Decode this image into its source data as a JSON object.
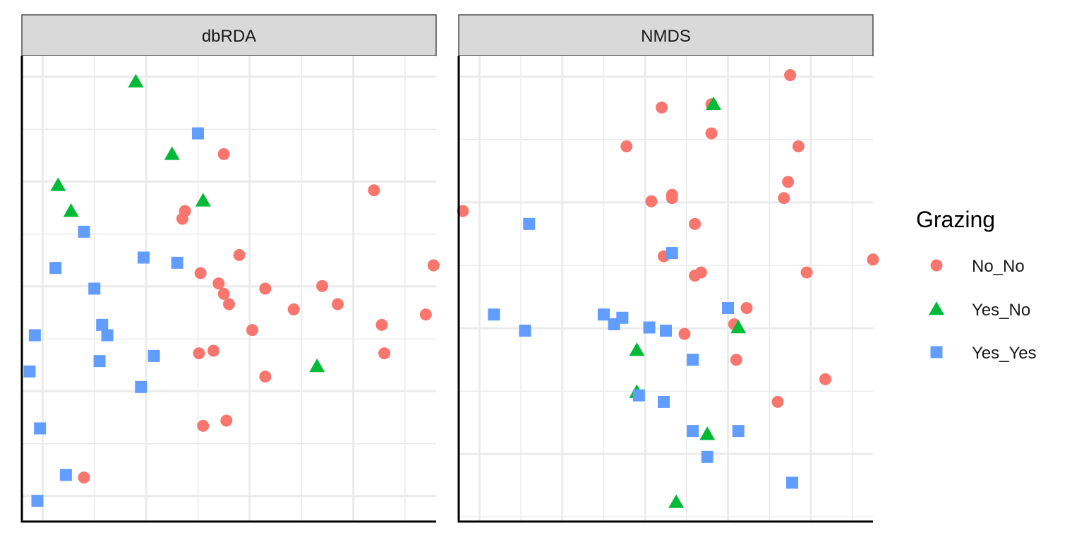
{
  "chart_data": {
    "type": "scatter",
    "facets": [
      {
        "title": "dbRDA",
        "xlim": [
          -0.2,
          7.8
        ],
        "ylim": [
          -0.5,
          8.5
        ],
        "points": [
          {
            "group": "Yes_No",
            "x": 2.0,
            "y": 8.0
          },
          {
            "group": "Yes_No",
            "x": 2.7,
            "y": 6.6
          },
          {
            "group": "Yes_No",
            "x": 0.5,
            "y": 6.0
          },
          {
            "group": "Yes_No",
            "x": 0.75,
            "y": 5.5
          },
          {
            "group": "Yes_No",
            "x": 3.3,
            "y": 5.7
          },
          {
            "group": "Yes_No",
            "x": 5.5,
            "y": 2.5
          },
          {
            "group": "Yes_Yes",
            "x": 3.2,
            "y": 7.0
          },
          {
            "group": "Yes_Yes",
            "x": 1.0,
            "y": 5.1
          },
          {
            "group": "Yes_Yes",
            "x": 0.45,
            "y": 4.4
          },
          {
            "group": "Yes_Yes",
            "x": 2.15,
            "y": 4.6
          },
          {
            "group": "Yes_Yes",
            "x": 2.8,
            "y": 4.5
          },
          {
            "group": "Yes_Yes",
            "x": 1.2,
            "y": 4.0
          },
          {
            "group": "Yes_Yes",
            "x": 1.35,
            "y": 3.3
          },
          {
            "group": "Yes_Yes",
            "x": 1.45,
            "y": 3.1
          },
          {
            "group": "Yes_Yes",
            "x": 0.05,
            "y": 3.1
          },
          {
            "group": "Yes_Yes",
            "x": 1.3,
            "y": 2.6
          },
          {
            "group": "Yes_Yes",
            "x": 2.35,
            "y": 2.7
          },
          {
            "group": "Yes_Yes",
            "x": -0.05,
            "y": 2.4
          },
          {
            "group": "Yes_Yes",
            "x": 2.1,
            "y": 2.1
          },
          {
            "group": "Yes_Yes",
            "x": 0.15,
            "y": 1.3
          },
          {
            "group": "Yes_Yes",
            "x": 0.65,
            "y": 0.4
          },
          {
            "group": "Yes_Yes",
            "x": 0.1,
            "y": -0.1
          },
          {
            "group": "No_No",
            "x": 3.7,
            "y": 6.6
          },
          {
            "group": "No_No",
            "x": 6.6,
            "y": 5.9
          },
          {
            "group": "No_No",
            "x": 2.95,
            "y": 5.5
          },
          {
            "group": "No_No",
            "x": 2.9,
            "y": 5.35
          },
          {
            "group": "No_No",
            "x": 4.0,
            "y": 4.65
          },
          {
            "group": "No_No",
            "x": 7.75,
            "y": 4.45
          },
          {
            "group": "No_No",
            "x": 3.25,
            "y": 4.3
          },
          {
            "group": "No_No",
            "x": 3.6,
            "y": 4.1
          },
          {
            "group": "No_No",
            "x": 4.5,
            "y": 4.0
          },
          {
            "group": "No_No",
            "x": 5.6,
            "y": 4.05
          },
          {
            "group": "No_No",
            "x": 3.7,
            "y": 3.9
          },
          {
            "group": "No_No",
            "x": 3.8,
            "y": 3.7
          },
          {
            "group": "No_No",
            "x": 5.9,
            "y": 3.7
          },
          {
            "group": "No_No",
            "x": 5.05,
            "y": 3.6
          },
          {
            "group": "No_No",
            "x": 7.6,
            "y": 3.5
          },
          {
            "group": "No_No",
            "x": 6.75,
            "y": 3.3
          },
          {
            "group": "No_No",
            "x": 4.25,
            "y": 3.2
          },
          {
            "group": "No_No",
            "x": 3.5,
            "y": 2.8
          },
          {
            "group": "No_No",
            "x": 3.22,
            "y": 2.75
          },
          {
            "group": "No_No",
            "x": 6.8,
            "y": 2.75
          },
          {
            "group": "No_No",
            "x": 4.5,
            "y": 2.3
          },
          {
            "group": "No_No",
            "x": 3.75,
            "y": 1.45
          },
          {
            "group": "No_No",
            "x": 3.3,
            "y": 1.35
          },
          {
            "group": "No_No",
            "x": 1.0,
            "y": 0.35
          }
        ]
      },
      {
        "title": "NMDS",
        "xlim": [
          -0.2,
          9.8
        ],
        "ylim": [
          -0.4,
          6.8
        ],
        "points": [
          {
            "group": "No_No",
            "x": 7.8,
            "y": 6.5
          },
          {
            "group": "No_No",
            "x": 4.7,
            "y": 6.0
          },
          {
            "group": "No_No",
            "x": 5.9,
            "y": 6.05
          },
          {
            "group": "No_No",
            "x": 5.9,
            "y": 5.6
          },
          {
            "group": "No_No",
            "x": 3.85,
            "y": 5.4
          },
          {
            "group": "No_No",
            "x": 8.0,
            "y": 5.4
          },
          {
            "group": "No_No",
            "x": 7.75,
            "y": 4.85
          },
          {
            "group": "No_No",
            "x": 4.95,
            "y": 4.65
          },
          {
            "group": "No_No",
            "x": 4.45,
            "y": 4.55
          },
          {
            "group": "No_No",
            "x": 4.95,
            "y": 4.6
          },
          {
            "group": "No_No",
            "x": 7.65,
            "y": 4.6
          },
          {
            "group": "No_No",
            "x": -0.1,
            "y": 4.4
          },
          {
            "group": "No_No",
            "x": 5.5,
            "y": 4.2
          },
          {
            "group": "No_No",
            "x": 4.75,
            "y": 3.7
          },
          {
            "group": "No_No",
            "x": 9.8,
            "y": 3.65
          },
          {
            "group": "No_No",
            "x": 5.65,
            "y": 3.45
          },
          {
            "group": "No_No",
            "x": 5.5,
            "y": 3.4
          },
          {
            "group": "No_No",
            "x": 8.2,
            "y": 3.45
          },
          {
            "group": "No_No",
            "x": 6.75,
            "y": 2.9
          },
          {
            "group": "No_No",
            "x": 6.45,
            "y": 2.65
          },
          {
            "group": "No_No",
            "x": 5.25,
            "y": 2.5
          },
          {
            "group": "No_No",
            "x": 6.5,
            "y": 2.1
          },
          {
            "group": "No_No",
            "x": 8.65,
            "y": 1.8
          },
          {
            "group": "No_No",
            "x": 7.5,
            "y": 1.45
          },
          {
            "group": "Yes_No",
            "x": 5.95,
            "y": 6.05
          },
          {
            "group": "Yes_No",
            "x": 6.55,
            "y": 2.6
          },
          {
            "group": "Yes_No",
            "x": 4.1,
            "y": 2.25
          },
          {
            "group": "Yes_No",
            "x": 4.1,
            "y": 1.6
          },
          {
            "group": "Yes_No",
            "x": 5.8,
            "y": 0.95
          },
          {
            "group": "Yes_No",
            "x": 5.05,
            "y": -0.1
          },
          {
            "group": "Yes_Yes",
            "x": 1.5,
            "y": 4.2
          },
          {
            "group": "Yes_Yes",
            "x": 4.95,
            "y": 3.75
          },
          {
            "group": "Yes_Yes",
            "x": 0.65,
            "y": 2.8
          },
          {
            "group": "Yes_Yes",
            "x": 3.3,
            "y": 2.8
          },
          {
            "group": "Yes_Yes",
            "x": 3.75,
            "y": 2.75
          },
          {
            "group": "Yes_Yes",
            "x": 6.3,
            "y": 2.9
          },
          {
            "group": "Yes_Yes",
            "x": 3.55,
            "y": 2.65
          },
          {
            "group": "Yes_Yes",
            "x": 4.4,
            "y": 2.6
          },
          {
            "group": "Yes_Yes",
            "x": 4.8,
            "y": 2.55
          },
          {
            "group": "Yes_Yes",
            "x": 1.4,
            "y": 2.55
          },
          {
            "group": "Yes_Yes",
            "x": 5.45,
            "y": 2.1
          },
          {
            "group": "Yes_Yes",
            "x": 4.15,
            "y": 1.55
          },
          {
            "group": "Yes_Yes",
            "x": 4.75,
            "y": 1.45
          },
          {
            "group": "Yes_Yes",
            "x": 5.45,
            "y": 1.0
          },
          {
            "group": "Yes_Yes",
            "x": 6.55,
            "y": 1.0
          },
          {
            "group": "Yes_Yes",
            "x": 5.8,
            "y": 0.6
          },
          {
            "group": "Yes_Yes",
            "x": 7.85,
            "y": 0.2
          }
        ]
      }
    ],
    "legend": {
      "title": "Grazing",
      "position": "right",
      "entries": [
        {
          "name": "No_No",
          "shape": "circle",
          "color": "#F8766D"
        },
        {
          "name": "Yes_No",
          "shape": "triangle",
          "color": "#00BA38"
        },
        {
          "name": "Yes_Yes",
          "shape": "square",
          "color": "#619CFF"
        }
      ]
    },
    "grid": true,
    "axis_ticks_shown": false,
    "panel_background": "#ffffff",
    "strip_background": "#d9d9d9",
    "grid_color": "#ebebeb"
  }
}
